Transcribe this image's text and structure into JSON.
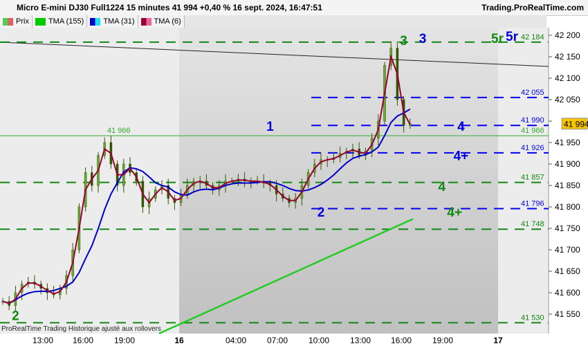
{
  "title": "Micro E-mini DJ30 Full1224 15 minutes 41 994 +0,40 % 16 sept. 2024, 16:47:51",
  "brand": "Trading.ProRealTime.com",
  "legend": [
    {
      "label": "Prix",
      "colors": [
        "#55cc55",
        "#e06060"
      ]
    },
    {
      "label": "TMA (155)",
      "colors": [
        "#00cc00",
        "#00cc00"
      ]
    },
    {
      "label": "TMA (31)",
      "colors": [
        "#0000cc",
        "#22ddee"
      ]
    },
    {
      "label": "TMA (6)",
      "colors": [
        "#990033",
        "#ee6699"
      ]
    }
  ],
  "footer": "ProRealTime Trading  Historique ajusté aux rollovers",
  "chart_data": {
    "type": "candlestick",
    "ylim": [
      41520,
      42240
    ],
    "y_ticks": [
      42200,
      42150,
      42100,
      42050,
      42000,
      41950,
      41900,
      41850,
      41800,
      41750,
      41700,
      41650,
      41600,
      41550
    ],
    "y_tick_labels": [
      "42 200",
      "42 150",
      "42 100",
      "42 050",
      "",
      "41 950",
      "41 900",
      "41 850",
      "41 800",
      "41 750",
      "41 700",
      "41 650",
      "41 600",
      "41 550"
    ],
    "x_tick_labels": [
      "13:00",
      "16:00",
      "19:00",
      "16",
      "04:00",
      "07:00",
      "10:00",
      "13:00",
      "16:00",
      "19:00",
      "17"
    ],
    "last_price": "41 994",
    "closes": [
      41580,
      41570,
      41600,
      41620,
      41625,
      41620,
      41610,
      41600,
      41595,
      41610,
      41640,
      41700,
      41800,
      41880,
      41850,
      41920,
      41950,
      41900,
      41850,
      41900,
      41880,
      41860,
      41800,
      41820,
      41840,
      41850,
      41820,
      41810,
      41830,
      41850,
      41860,
      41860,
      41850,
      41840,
      41850,
      41860,
      41860,
      41865,
      41860,
      41860,
      41860,
      41855,
      41850,
      41830,
      41820,
      41810,
      41820,
      41850,
      41880,
      41900,
      41910,
      41910,
      41915,
      41925,
      41930,
      41935,
      41920,
      41930,
      41960,
      42000,
      42130,
      42170,
      42050,
      41990,
      41994
    ],
    "tma155_range": [
      41505,
      41772
    ],
    "levels": [
      {
        "value": 42184,
        "label": "42 184",
        "color": "#118811",
        "style": "dashed"
      },
      {
        "value": 42055,
        "label": "42 055",
        "color": "#0000ee",
        "style": "dashed"
      },
      {
        "value": 41990,
        "label": "41 990",
        "color": "#0000ee",
        "style": "dashed"
      },
      {
        "value": 41966,
        "label": "41 966",
        "color": "#33aa33",
        "style": "solid"
      },
      {
        "value": 41926,
        "label": "41 926",
        "color": "#0000ee",
        "style": "dashed"
      },
      {
        "value": 41857,
        "label": "41 857",
        "color": "#118811",
        "style": "dashed"
      },
      {
        "value": 41796,
        "label": "41 796",
        "color": "#0000ee",
        "style": "dashed"
      },
      {
        "value": 41748,
        "label": "41 748",
        "color": "#118811",
        "style": "dashed"
      },
      {
        "value": 41530,
        "label": "41 530",
        "color": "#118811",
        "style": "dashed"
      }
    ],
    "wave_labels": [
      {
        "text": "1",
        "color": "#0000dd",
        "bar": 42,
        "price": 41990
      },
      {
        "text": "2",
        "color": "#0000dd",
        "bar": 50,
        "price": 41790
      },
      {
        "text": "3",
        "color": "#118811",
        "bar": 63,
        "price": 42190
      },
      {
        "text": "3",
        "color": "#0000dd",
        "bar": 66,
        "price": 42195
      },
      {
        "text": "4",
        "color": "#0000dd",
        "bar": 72,
        "price": 41990
      },
      {
        "text": "4+",
        "color": "#0000dd",
        "bar": 72,
        "price": 41922
      },
      {
        "text": "4",
        "color": "#118811",
        "bar": 69,
        "price": 41850
      },
      {
        "text": "4+",
        "color": "#118811",
        "bar": 71,
        "price": 41790
      },
      {
        "text": "5r",
        "color": "#0000dd",
        "bar": 80,
        "price": 42200
      },
      {
        "text": "5r",
        "color": "#118811",
        "bar": 88,
        "price": 42195
      },
      {
        "text": "2",
        "color": "#118811",
        "bar": 2,
        "price": 41535
      }
    ]
  }
}
